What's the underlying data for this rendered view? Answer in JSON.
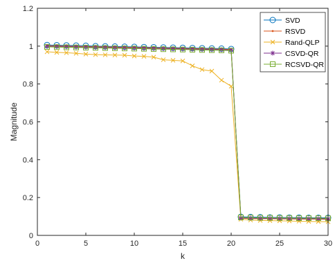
{
  "chart_data": {
    "type": "line",
    "title": "",
    "xlabel": "k",
    "ylabel": "Magnitude",
    "xlim": [
      0,
      30
    ],
    "ylim": [
      0,
      1.2
    ],
    "xticks": [
      0,
      5,
      10,
      15,
      20,
      25,
      30
    ],
    "yticks": [
      0,
      0.2,
      0.4,
      0.6,
      0.8,
      1,
      1.2
    ],
    "grid": false,
    "legend_position": "top-right",
    "x": [
      1,
      2,
      3,
      4,
      5,
      6,
      7,
      8,
      9,
      10,
      11,
      12,
      13,
      14,
      15,
      16,
      17,
      18,
      19,
      20,
      21,
      22,
      23,
      24,
      25,
      26,
      27,
      28,
      29,
      30
    ],
    "series": [
      {
        "name": "SVD",
        "color": "#0072BD",
        "marker": "circle",
        "values": [
          1.006,
          1.005,
          1.004,
          1.003,
          1.002,
          1.0,
          0.999,
          0.998,
          0.997,
          0.996,
          0.995,
          0.994,
          0.993,
          0.992,
          0.991,
          0.99,
          0.989,
          0.988,
          0.987,
          0.985,
          0.098,
          0.097,
          0.096,
          0.095,
          0.095,
          0.094,
          0.094,
          0.093,
          0.093,
          0.093
        ]
      },
      {
        "name": "RSVD",
        "color": "#D95319",
        "marker": "point",
        "values": [
          1.002,
          1.001,
          1.0,
          0.999,
          0.998,
          0.997,
          0.996,
          0.995,
          0.994,
          0.993,
          0.992,
          0.991,
          0.99,
          0.989,
          0.988,
          0.987,
          0.986,
          0.985,
          0.984,
          0.982,
          0.09,
          0.089,
          0.088,
          0.088,
          0.087,
          0.087,
          0.086,
          0.086,
          0.086,
          0.085
        ]
      },
      {
        "name": "Rand-QLP",
        "color": "#EDB120",
        "marker": "x",
        "values": [
          0.97,
          0.967,
          0.965,
          0.962,
          0.958,
          0.955,
          0.954,
          0.953,
          0.952,
          0.948,
          0.946,
          0.942,
          0.928,
          0.925,
          0.922,
          0.896,
          0.876,
          0.868,
          0.82,
          0.788,
          0.085,
          0.081,
          0.079,
          0.078,
          0.077,
          0.076,
          0.075,
          0.074,
          0.073,
          0.072
        ]
      },
      {
        "name": "CSVD-QR",
        "color": "#7E2F8E",
        "marker": "asterisk",
        "values": [
          0.999,
          0.998,
          0.997,
          0.996,
          0.995,
          0.994,
          0.993,
          0.992,
          0.991,
          0.99,
          0.989,
          0.988,
          0.987,
          0.986,
          0.985,
          0.984,
          0.983,
          0.982,
          0.981,
          0.979,
          0.092,
          0.091,
          0.09,
          0.09,
          0.089,
          0.089,
          0.088,
          0.088,
          0.088,
          0.087
        ]
      },
      {
        "name": "RCSVD-QR",
        "color": "#77AC30",
        "marker": "square",
        "values": [
          0.996,
          0.995,
          0.994,
          0.993,
          0.992,
          0.991,
          0.99,
          0.989,
          0.988,
          0.987,
          0.986,
          0.985,
          0.984,
          0.983,
          0.982,
          0.981,
          0.98,
          0.979,
          0.978,
          0.976,
          0.095,
          0.094,
          0.093,
          0.093,
          0.092,
          0.092,
          0.091,
          0.091,
          0.091,
          0.09
        ]
      }
    ]
  }
}
